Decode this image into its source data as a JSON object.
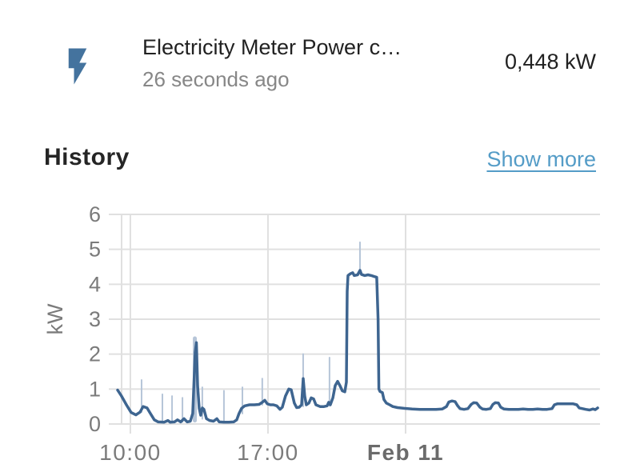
{
  "header": {
    "icon": "flash-icon",
    "title": "Electricity Meter Power c…",
    "subtitle": "26 seconds ago",
    "value": "0,448 kW"
  },
  "history": {
    "heading": "History",
    "show_more_label": "Show more"
  },
  "colors": {
    "icon": "#44739e",
    "line": "#3e6590",
    "band": "#b6c5d8",
    "link": "#549cc7",
    "grid": "#e0e0e0",
    "axis_text": "#7b7b7b",
    "axis_text_bold": "#6b6b6b",
    "text_primary": "#212121",
    "text_secondary": "#878787"
  },
  "chart_data": {
    "type": "line",
    "title": "",
    "xlabel": "",
    "ylabel": "kW",
    "ylim": [
      0,
      6
    ],
    "y_ticks": [
      0,
      1,
      2,
      3,
      4,
      5,
      6
    ],
    "xlim": [
      9.31,
      33.89
    ],
    "x_ticks": [
      {
        "t": 10,
        "label": "10:00",
        "bold": false
      },
      {
        "t": 17,
        "label": "17:00",
        "bold": false
      },
      {
        "t": 24,
        "label": "Feb 11",
        "bold": true
      }
    ],
    "grid": true,
    "legend": "none",
    "x_unit": "hours since Feb 10 00:00",
    "series": [
      {
        "name": "Electricity Meter Power consumed",
        "unit": "kW",
        "points": [
          [
            9.35,
            0.97
          ],
          [
            9.55,
            0.8
          ],
          [
            9.8,
            0.55
          ],
          [
            10.04,
            0.33
          ],
          [
            10.28,
            0.26
          ],
          [
            10.49,
            0.34
          ],
          [
            10.65,
            0.5
          ],
          [
            10.85,
            0.46
          ],
          [
            11.02,
            0.3
          ],
          [
            11.22,
            0.12
          ],
          [
            11.42,
            0.06
          ],
          [
            11.71,
            0.05
          ],
          [
            11.91,
            0.1
          ],
          [
            12.03,
            0.05
          ],
          [
            12.24,
            0.06
          ],
          [
            12.4,
            0.12
          ],
          [
            12.56,
            0.06
          ],
          [
            12.73,
            0.15
          ],
          [
            12.89,
            0.06
          ],
          [
            13.05,
            0.08
          ],
          [
            13.17,
            0.3
          ],
          [
            13.3,
            2.05
          ],
          [
            13.36,
            2.33
          ],
          [
            13.42,
            1.1
          ],
          [
            13.5,
            0.45
          ],
          [
            13.58,
            0.25
          ],
          [
            13.66,
            0.46
          ],
          [
            13.74,
            0.42
          ],
          [
            13.87,
            0.15
          ],
          [
            14.03,
            0.1
          ],
          [
            14.23,
            0.08
          ],
          [
            14.4,
            0.15
          ],
          [
            14.52,
            0.06
          ],
          [
            14.76,
            0.05
          ],
          [
            15.01,
            0.05
          ],
          [
            15.25,
            0.06
          ],
          [
            15.41,
            0.12
          ],
          [
            15.53,
            0.3
          ],
          [
            15.66,
            0.45
          ],
          [
            15.82,
            0.52
          ],
          [
            16.06,
            0.55
          ],
          [
            16.31,
            0.55
          ],
          [
            16.55,
            0.56
          ],
          [
            16.71,
            0.62
          ],
          [
            16.84,
            0.68
          ],
          [
            16.96,
            0.58
          ],
          [
            17.12,
            0.55
          ],
          [
            17.28,
            0.55
          ],
          [
            17.45,
            0.52
          ],
          [
            17.61,
            0.42
          ],
          [
            17.73,
            0.48
          ],
          [
            17.89,
            0.8
          ],
          [
            18.06,
            1.0
          ],
          [
            18.18,
            0.98
          ],
          [
            18.34,
            0.6
          ],
          [
            18.46,
            0.47
          ],
          [
            18.59,
            0.48
          ],
          [
            18.71,
            0.55
          ],
          [
            18.79,
            1.3
          ],
          [
            18.87,
            0.8
          ],
          [
            18.95,
            0.55
          ],
          [
            19.08,
            0.6
          ],
          [
            19.2,
            0.75
          ],
          [
            19.32,
            0.72
          ],
          [
            19.44,
            0.55
          ],
          [
            19.65,
            0.5
          ],
          [
            19.85,
            0.5
          ],
          [
            20.01,
            0.52
          ],
          [
            20.09,
            0.62
          ],
          [
            20.17,
            0.55
          ],
          [
            20.3,
            0.75
          ],
          [
            20.42,
            1.1
          ],
          [
            20.54,
            1.22
          ],
          [
            20.66,
            1.1
          ],
          [
            20.78,
            0.95
          ],
          [
            20.91,
            0.92
          ],
          [
            20.99,
            1.2
          ],
          [
            21.03,
            3.8
          ],
          [
            21.07,
            4.25
          ],
          [
            21.19,
            4.3
          ],
          [
            21.31,
            4.33
          ],
          [
            21.39,
            4.25
          ],
          [
            21.56,
            4.27
          ],
          [
            21.68,
            4.4
          ],
          [
            21.76,
            4.28
          ],
          [
            21.92,
            4.25
          ],
          [
            22.09,
            4.27
          ],
          [
            22.25,
            4.25
          ],
          [
            22.41,
            4.22
          ],
          [
            22.53,
            4.2
          ],
          [
            22.6,
            3.0
          ],
          [
            22.64,
            1.0
          ],
          [
            22.7,
            0.93
          ],
          [
            22.82,
            0.9
          ],
          [
            22.9,
            0.7
          ],
          [
            23.02,
            0.6
          ],
          [
            23.19,
            0.55
          ],
          [
            23.35,
            0.5
          ],
          [
            23.59,
            0.47
          ],
          [
            23.92,
            0.45
          ],
          [
            24.33,
            0.43
          ],
          [
            24.73,
            0.42
          ],
          [
            25.14,
            0.42
          ],
          [
            25.55,
            0.42
          ],
          [
            25.87,
            0.43
          ],
          [
            26.08,
            0.5
          ],
          [
            26.2,
            0.63
          ],
          [
            26.36,
            0.66
          ],
          [
            26.52,
            0.64
          ],
          [
            26.65,
            0.52
          ],
          [
            26.77,
            0.44
          ],
          [
            26.97,
            0.42
          ],
          [
            27.17,
            0.44
          ],
          [
            27.34,
            0.56
          ],
          [
            27.46,
            0.61
          ],
          [
            27.62,
            0.6
          ],
          [
            27.78,
            0.48
          ],
          [
            27.91,
            0.43
          ],
          [
            28.11,
            0.42
          ],
          [
            28.31,
            0.44
          ],
          [
            28.44,
            0.56
          ],
          [
            28.56,
            0.61
          ],
          [
            28.72,
            0.6
          ],
          [
            28.84,
            0.48
          ],
          [
            29.0,
            0.43
          ],
          [
            29.25,
            0.42
          ],
          [
            29.49,
            0.42
          ],
          [
            29.74,
            0.42
          ],
          [
            29.98,
            0.43
          ],
          [
            30.23,
            0.42
          ],
          [
            30.47,
            0.42
          ],
          [
            30.71,
            0.43
          ],
          [
            30.96,
            0.42
          ],
          [
            31.2,
            0.42
          ],
          [
            31.45,
            0.44
          ],
          [
            31.57,
            0.55
          ],
          [
            31.73,
            0.58
          ],
          [
            31.98,
            0.58
          ],
          [
            32.26,
            0.58
          ],
          [
            32.51,
            0.58
          ],
          [
            32.71,
            0.55
          ],
          [
            32.83,
            0.46
          ],
          [
            33.0,
            0.44
          ],
          [
            33.16,
            0.42
          ],
          [
            33.36,
            0.4
          ],
          [
            33.53,
            0.43
          ],
          [
            33.65,
            0.41
          ],
          [
            33.77,
            0.46
          ]
        ]
      }
    ],
    "minmax_spikes": [
      {
        "t": 10.57,
        "max": 1.26,
        "base": 0.34,
        "w": 2
      },
      {
        "t": 11.63,
        "max": 0.85,
        "base": 0.06,
        "w": 2
      },
      {
        "t": 12.12,
        "max": 0.8,
        "base": 0.05,
        "w": 2
      },
      {
        "t": 12.65,
        "max": 0.75,
        "base": 0.06,
        "w": 2
      },
      {
        "t": 13.28,
        "max": 2.45,
        "base": 0.1,
        "w": 5
      },
      {
        "t": 13.66,
        "max": 1.05,
        "base": 0.15,
        "w": 2
      },
      {
        "t": 14.76,
        "max": 0.95,
        "base": 0.05,
        "w": 2
      },
      {
        "t": 15.7,
        "max": 1.05,
        "base": 0.3,
        "w": 2
      },
      {
        "t": 16.71,
        "max": 1.3,
        "base": 0.55,
        "w": 2
      },
      {
        "t": 18.79,
        "max": 2.0,
        "base": 0.5,
        "w": 2
      },
      {
        "t": 20.13,
        "max": 1.9,
        "base": 0.52,
        "w": 2
      },
      {
        "t": 21.68,
        "max": 5.2,
        "base": 4.3,
        "w": 2
      }
    ]
  }
}
